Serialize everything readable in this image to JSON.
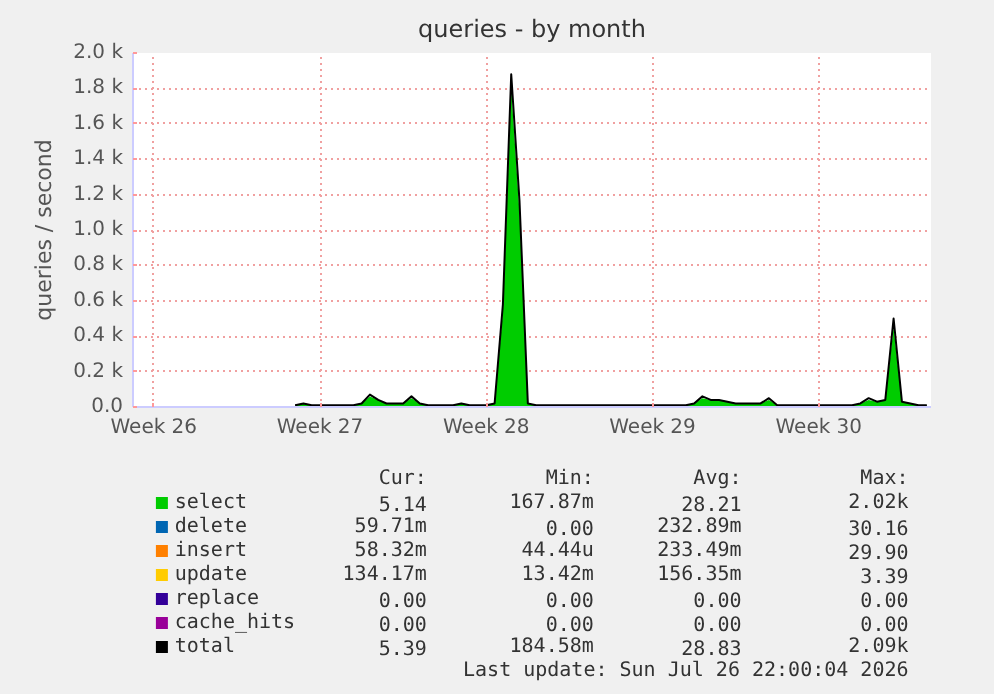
{
  "chart_data": {
    "type": "area",
    "title": "queries - by month",
    "ylabel": "queries / second",
    "legend": "bottom",
    "grid": true,
    "categories": [
      null,
      null,
      "Week 26",
      null,
      null,
      null,
      null,
      null,
      null,
      null,
      null,
      null,
      null,
      null,
      null,
      null,
      null,
      null,
      null,
      null,
      null,
      null,
      "Week 27",
      null,
      null,
      null,
      null,
      null,
      null,
      null,
      null,
      null,
      null,
      null,
      null,
      null,
      null,
      null,
      null,
      null,
      null,
      null,
      "Week 28",
      null,
      null,
      null,
      null,
      null,
      null,
      null,
      null,
      null,
      null,
      null,
      null,
      null,
      null,
      null,
      null,
      null,
      null,
      null,
      "Week 29",
      null,
      null,
      null,
      null,
      null,
      null,
      null,
      null,
      null,
      null,
      null,
      null,
      null,
      null,
      null,
      null,
      null,
      null,
      null,
      "Week 30",
      null,
      null,
      null,
      null,
      null,
      null,
      null,
      null,
      null,
      null,
      null,
      null,
      null
    ],
    "ylim": [
      0,
      2000
    ],
    "yticks": [
      {
        "value": 0,
        "label": "0.0"
      },
      {
        "value": 200,
        "label": "0.2 k"
      },
      {
        "value": 400,
        "label": "0.4 k"
      },
      {
        "value": 600,
        "label": "0.6 k"
      },
      {
        "value": 800,
        "label": "0.8 k"
      },
      {
        "value": 1000,
        "label": "1.0 k"
      },
      {
        "value": 1200,
        "label": "1.2 k"
      },
      {
        "value": 1400,
        "label": "1.4 k"
      },
      {
        "value": 1600,
        "label": "1.6 k"
      },
      {
        "value": 1800,
        "label": "1.8 k"
      },
      {
        "value": 2000,
        "label": "2.0 k"
      }
    ],
    "series": [
      {
        "name": "select",
        "color": "#00cc00",
        "values": [
          null,
          null,
          null,
          null,
          null,
          null,
          null,
          null,
          null,
          null,
          null,
          null,
          null,
          null,
          null,
          null,
          null,
          null,
          null,
          10,
          20,
          10,
          10,
          10,
          10,
          10,
          10,
          20,
          60,
          40,
          20,
          20,
          20,
          50,
          20,
          10,
          10,
          10,
          10,
          20,
          10,
          10,
          10,
          20,
          540,
          1800,
          1100,
          20,
          10,
          10,
          10,
          10,
          10,
          10,
          10,
          10,
          10,
          10,
          10,
          10,
          10,
          10,
          10,
          10,
          10,
          10,
          10,
          20,
          50,
          40,
          40,
          30,
          20,
          20,
          20,
          20,
          40,
          10,
          10,
          10,
          10,
          10,
          10,
          10,
          10,
          10,
          10,
          20,
          40,
          30,
          40,
          450,
          30,
          20,
          10,
          10
        ]
      },
      {
        "name": "delete",
        "color": "#0066b3",
        "values": [
          null,
          null,
          null,
          null,
          null,
          null,
          null,
          null,
          null,
          null,
          null,
          null,
          null,
          null,
          null,
          null,
          null,
          null,
          null,
          null,
          null,
          null,
          null,
          null,
          null,
          null,
          null,
          null,
          null,
          null,
          null,
          null,
          null,
          null,
          null,
          null,
          null,
          null,
          null,
          null,
          null,
          null,
          null,
          null,
          null,
          null,
          null,
          null,
          null,
          null,
          null,
          null,
          null,
          null,
          null,
          null,
          null,
          null,
          null,
          null,
          null,
          null,
          null,
          null,
          null,
          null,
          null,
          null,
          null,
          null,
          null,
          null,
          null,
          null,
          null,
          null,
          null,
          null,
          null,
          null,
          null,
          null,
          null,
          null,
          null,
          null,
          null,
          null,
          null,
          null,
          null,
          null,
          null,
          null,
          null,
          null
        ]
      },
      {
        "name": "insert",
        "color": "#ff8000",
        "values": [
          null,
          null,
          null,
          null,
          null,
          null,
          null,
          null,
          null,
          null,
          null,
          null,
          null,
          null,
          null,
          null,
          null,
          null,
          null,
          null,
          null,
          null,
          null,
          null,
          null,
          null,
          null,
          null,
          null,
          null,
          null,
          null,
          null,
          null,
          null,
          null,
          null,
          null,
          null,
          null,
          null,
          null,
          null,
          null,
          null,
          null,
          null,
          null,
          null,
          null,
          null,
          null,
          null,
          null,
          null,
          null,
          null,
          null,
          null,
          null,
          null,
          null,
          null,
          null,
          null,
          null,
          null,
          null,
          null,
          null,
          null,
          null,
          null,
          null,
          null,
          null,
          null,
          null,
          null,
          null,
          null,
          null,
          null,
          null,
          null,
          null,
          null,
          null,
          null,
          null,
          null,
          null,
          null,
          null,
          null,
          null
        ]
      },
      {
        "name": "update",
        "color": "#ffcc00",
        "values": [
          null,
          null,
          null,
          null,
          null,
          null,
          null,
          null,
          null,
          null,
          null,
          null,
          null,
          null,
          null,
          null,
          null,
          null,
          null,
          null,
          null,
          null,
          null,
          null,
          null,
          null,
          null,
          null,
          null,
          null,
          null,
          null,
          null,
          null,
          null,
          null,
          null,
          null,
          null,
          null,
          null,
          null,
          null,
          null,
          null,
          null,
          null,
          null,
          null,
          null,
          null,
          null,
          null,
          null,
          null,
          null,
          null,
          null,
          null,
          null,
          null,
          null,
          null,
          null,
          null,
          null,
          null,
          null,
          null,
          null,
          null,
          null,
          null,
          null,
          null,
          null,
          null,
          null,
          null,
          null,
          null,
          null,
          null,
          null,
          null,
          null,
          null,
          null,
          null,
          null,
          null,
          null,
          null,
          null,
          null,
          null
        ]
      },
      {
        "name": "replace",
        "color": "#330099",
        "values": [
          null,
          null,
          null,
          null,
          null,
          null,
          null,
          null,
          null,
          null,
          null,
          null,
          null,
          null,
          null,
          null,
          null,
          null,
          null,
          null,
          null,
          null,
          null,
          null,
          null,
          null,
          null,
          null,
          null,
          null,
          null,
          null,
          null,
          null,
          null,
          null,
          null,
          null,
          null,
          null,
          null,
          null,
          null,
          null,
          null,
          null,
          null,
          null,
          null,
          null,
          null,
          null,
          null,
          null,
          null,
          null,
          null,
          null,
          null,
          null,
          null,
          null,
          null,
          null,
          null,
          null,
          null,
          null,
          null,
          null,
          null,
          null,
          null,
          null,
          null,
          null,
          null,
          null,
          null,
          null,
          null,
          null,
          null,
          null,
          null,
          null,
          null,
          null,
          null,
          null,
          null,
          null,
          null,
          null,
          null,
          null
        ]
      },
      {
        "name": "cache_hits",
        "color": "#990099",
        "values": [
          null,
          null,
          null,
          null,
          null,
          null,
          null,
          null,
          null,
          null,
          null,
          null,
          null,
          null,
          null,
          null,
          null,
          null,
          null,
          null,
          null,
          null,
          null,
          null,
          null,
          null,
          null,
          null,
          null,
          null,
          null,
          null,
          null,
          null,
          null,
          null,
          null,
          null,
          null,
          null,
          null,
          null,
          null,
          null,
          null,
          null,
          null,
          null,
          null,
          null,
          null,
          null,
          null,
          null,
          null,
          null,
          null,
          null,
          null,
          null,
          null,
          null,
          null,
          null,
          null,
          null,
          null,
          null,
          null,
          null,
          null,
          null,
          null,
          null,
          null,
          null,
          null,
          null,
          null,
          null,
          null,
          null,
          null,
          null,
          null,
          null,
          null,
          null,
          null,
          null,
          null,
          null,
          null,
          null,
          null,
          null
        ]
      },
      {
        "name": "total",
        "color": "#000000",
        "type": "line",
        "values": [
          null,
          null,
          null,
          null,
          null,
          null,
          null,
          null,
          null,
          null,
          null,
          null,
          null,
          null,
          null,
          null,
          null,
          null,
          null,
          10,
          20,
          10,
          10,
          10,
          10,
          10,
          10,
          20,
          70,
          40,
          20,
          20,
          20,
          60,
          20,
          10,
          10,
          10,
          10,
          20,
          10,
          10,
          10,
          20,
          580,
          1880,
          1160,
          20,
          10,
          10,
          10,
          10,
          10,
          10,
          10,
          10,
          10,
          10,
          10,
          10,
          10,
          10,
          10,
          10,
          10,
          10,
          10,
          20,
          60,
          40,
          40,
          30,
          20,
          20,
          20,
          20,
          50,
          10,
          10,
          10,
          10,
          10,
          10,
          10,
          10,
          10,
          10,
          20,
          50,
          30,
          40,
          500,
          30,
          20,
          10,
          10
        ]
      }
    ],
    "annotations": [
      "Cur:",
      "Min:",
      "Avg:",
      "Max:",
      "5.14",
      "167.87m",
      "28.21",
      "2.02k",
      "59.71m",
      "0.00",
      "232.89m",
      "30.16",
      "58.32m",
      "44.44u",
      "233.49m",
      "29.90",
      "134.17m",
      "13.42m",
      "156.35m",
      "3.39",
      "0.00",
      "0.00",
      "0.00",
      "0.00",
      "0.00",
      "0.00",
      "0.00",
      "0.00",
      "5.39",
      "184.58m",
      "28.83",
      "2.09k",
      "Last update: Sun Jul 26 22:00:04 2026"
    ]
  }
}
